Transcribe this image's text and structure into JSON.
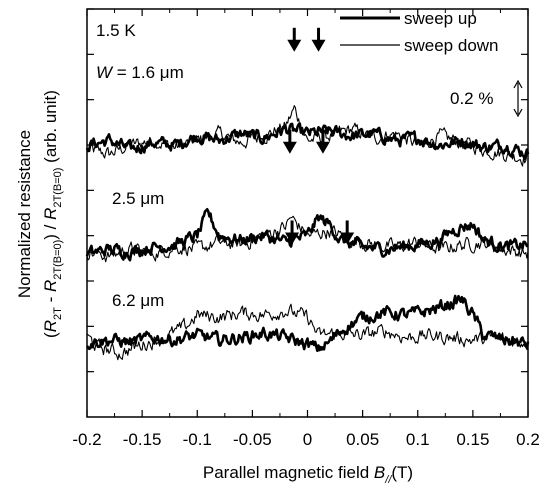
{
  "chart_data": {
    "type": "line",
    "title": "",
    "xlabel_prefix": "Parallel magnetic field ",
    "xlabel_var": "B",
    "xlabel_sub": "//",
    "xlabel_unit": "(T)",
    "ylabel_line1": "Normalized resistance",
    "ylabel_line2": {
      "open": "(",
      "r1": "R",
      "r1_sub": "2T",
      "minus": " - ",
      "r2": "R",
      "r2_sub": "2T(B=0)",
      "close_div": ") / ",
      "r3": "R",
      "r3_sub": "2T(B=0)",
      "unit": " (arb. unit)"
    },
    "xlim": [
      -0.2,
      0.2
    ],
    "x_ticks": [
      -0.2,
      -0.15,
      -0.1,
      -0.05,
      0,
      0.05,
      0.1,
      0.15,
      0.2
    ],
    "x_tick_labels": [
      "-0.2",
      "-0.15",
      "-0.1",
      "-0.05",
      "0",
      "0.05",
      "0.1",
      "0.15",
      "0.2"
    ],
    "ylim": [
      0,
      1.8
    ],
    "grid": false,
    "legend_position": "top-right",
    "legend": [
      {
        "label": "sweep up",
        "style": "thick"
      },
      {
        "label": "sweep down",
        "style": "thin"
      }
    ],
    "temperature_label": "1.5 K",
    "scale_bar_label": "0.2 %",
    "scale_bar_value": 0.2,
    "panels": [
      {
        "width_label_prefix": "W",
        "width_label_rest": " = 1.6 μm",
        "baseline": 1.2,
        "arrows_x": [
          -0.012,
          0.01
        ],
        "sweep_up": [
          [
            -0.2,
            1.2
          ],
          [
            -0.18,
            1.22
          ],
          [
            -0.16,
            1.18
          ],
          [
            -0.14,
            1.21
          ],
          [
            -0.12,
            1.2
          ],
          [
            -0.1,
            1.24
          ],
          [
            -0.08,
            1.22
          ],
          [
            -0.06,
            1.25
          ],
          [
            -0.04,
            1.23
          ],
          [
            -0.02,
            1.27
          ],
          [
            0,
            1.25
          ],
          [
            0.02,
            1.26
          ],
          [
            0.04,
            1.24
          ],
          [
            0.06,
            1.25
          ],
          [
            0.08,
            1.22
          ],
          [
            0.1,
            1.23
          ],
          [
            0.12,
            1.2
          ],
          [
            0.14,
            1.22
          ],
          [
            0.16,
            1.19
          ],
          [
            0.18,
            1.2
          ],
          [
            0.2,
            1.16
          ]
        ],
        "sweep_down": [
          [
            -0.2,
            1.18
          ],
          [
            -0.18,
            1.16
          ],
          [
            -0.16,
            1.2
          ],
          [
            -0.14,
            1.22
          ],
          [
            -0.12,
            1.19
          ],
          [
            -0.1,
            1.22
          ],
          [
            -0.08,
            1.25
          ],
          [
            -0.06,
            1.21
          ],
          [
            -0.04,
            1.24
          ],
          [
            -0.02,
            1.28
          ],
          [
            -0.012,
            1.36
          ],
          [
            0,
            1.22
          ],
          [
            0.02,
            1.24
          ],
          [
            0.04,
            1.27
          ],
          [
            0.06,
            1.23
          ],
          [
            0.08,
            1.25
          ],
          [
            0.1,
            1.2
          ],
          [
            0.12,
            1.24
          ],
          [
            0.14,
            1.21
          ],
          [
            0.16,
            1.18
          ],
          [
            0.2,
            1.14
          ]
        ]
      },
      {
        "width_label_prefix": "",
        "width_label_rest": "2.5 μm",
        "baseline": 0.75,
        "arrows_x": [
          -0.016,
          0.014
        ],
        "sweep_up": [
          [
            -0.2,
            0.72
          ],
          [
            -0.18,
            0.74
          ],
          [
            -0.16,
            0.73
          ],
          [
            -0.14,
            0.75
          ],
          [
            -0.12,
            0.76
          ],
          [
            -0.1,
            0.8
          ],
          [
            -0.09,
            0.9
          ],
          [
            -0.08,
            0.8
          ],
          [
            -0.06,
            0.78
          ],
          [
            -0.04,
            0.8
          ],
          [
            -0.02,
            0.77
          ],
          [
            0,
            0.8
          ],
          [
            0.01,
            0.88
          ],
          [
            0.02,
            0.85
          ],
          [
            0.03,
            0.78
          ],
          [
            0.05,
            0.75
          ],
          [
            0.07,
            0.74
          ],
          [
            0.1,
            0.76
          ],
          [
            0.12,
            0.78
          ],
          [
            0.13,
            0.82
          ],
          [
            0.14,
            0.84
          ],
          [
            0.15,
            0.85
          ],
          [
            0.16,
            0.78
          ],
          [
            0.18,
            0.75
          ],
          [
            0.2,
            0.76
          ]
        ],
        "sweep_down": [
          [
            -0.2,
            0.73
          ],
          [
            -0.18,
            0.71
          ],
          [
            -0.16,
            0.74
          ],
          [
            -0.14,
            0.72
          ],
          [
            -0.12,
            0.75
          ],
          [
            -0.1,
            0.74
          ],
          [
            -0.08,
            0.77
          ],
          [
            -0.06,
            0.76
          ],
          [
            -0.04,
            0.8
          ],
          [
            -0.02,
            0.84
          ],
          [
            -0.015,
            0.88
          ],
          [
            0,
            0.8
          ],
          [
            0.02,
            0.82
          ],
          [
            0.04,
            0.78
          ],
          [
            0.06,
            0.76
          ],
          [
            0.08,
            0.75
          ],
          [
            0.1,
            0.77
          ],
          [
            0.12,
            0.74
          ],
          [
            0.14,
            0.76
          ],
          [
            0.16,
            0.77
          ],
          [
            0.18,
            0.74
          ],
          [
            0.2,
            0.72
          ]
        ]
      },
      {
        "width_label_prefix": "",
        "width_label_rest": "6.2 μm",
        "baseline": 0.35,
        "arrows_x": [
          -0.014,
          0.036
        ],
        "sweep_up": [
          [
            -0.2,
            0.33
          ],
          [
            -0.18,
            0.34
          ],
          [
            -0.16,
            0.33
          ],
          [
            -0.14,
            0.35
          ],
          [
            -0.12,
            0.34
          ],
          [
            -0.1,
            0.36
          ],
          [
            -0.08,
            0.34
          ],
          [
            -0.06,
            0.35
          ],
          [
            -0.04,
            0.37
          ],
          [
            -0.02,
            0.35
          ],
          [
            0,
            0.32
          ],
          [
            0.01,
            0.3
          ],
          [
            0.02,
            0.33
          ],
          [
            0.03,
            0.38
          ],
          [
            0.05,
            0.44
          ],
          [
            0.07,
            0.46
          ],
          [
            0.09,
            0.45
          ],
          [
            0.11,
            0.47
          ],
          [
            0.13,
            0.5
          ],
          [
            0.14,
            0.52
          ],
          [
            0.15,
            0.45
          ],
          [
            0.16,
            0.36
          ],
          [
            0.18,
            0.34
          ],
          [
            0.2,
            0.32
          ]
        ],
        "sweep_down": [
          [
            -0.2,
            0.35
          ],
          [
            -0.19,
            0.31
          ],
          [
            -0.17,
            0.28
          ],
          [
            -0.15,
            0.32
          ],
          [
            -0.13,
            0.35
          ],
          [
            -0.11,
            0.4
          ],
          [
            -0.1,
            0.45
          ],
          [
            -0.08,
            0.44
          ],
          [
            -0.06,
            0.46
          ],
          [
            -0.04,
            0.45
          ],
          [
            -0.02,
            0.47
          ],
          [
            0,
            0.44
          ],
          [
            0.01,
            0.36
          ],
          [
            0.03,
            0.37
          ],
          [
            0.05,
            0.36
          ],
          [
            0.07,
            0.38
          ],
          [
            0.09,
            0.35
          ],
          [
            0.11,
            0.36
          ],
          [
            0.13,
            0.35
          ],
          [
            0.15,
            0.34
          ],
          [
            0.17,
            0.35
          ],
          [
            0.2,
            0.33
          ]
        ]
      }
    ]
  }
}
